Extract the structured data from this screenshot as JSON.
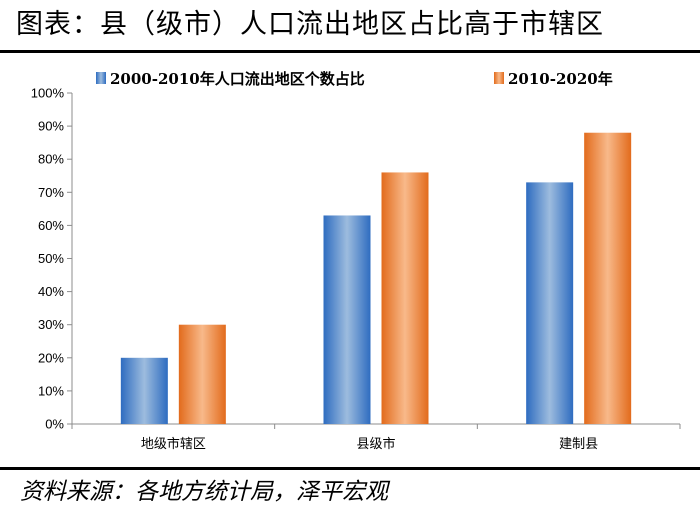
{
  "header": {
    "title": "图表：县（级市）人口流出地区占比高于市辖区"
  },
  "footer": {
    "source": "资料来源：各地方统计局，泽平宏观"
  },
  "colors": {
    "blue": "#3a78c2",
    "orange": "#e8772a"
  },
  "chart_data": {
    "type": "bar",
    "title": "县（级市）人口流出地区占比高于市辖区",
    "categories": [
      "地级市辖区",
      "县级市",
      "建制县"
    ],
    "series": [
      {
        "name": "2000-2010年人口流出地区个数占比",
        "values": [
          20,
          63,
          73
        ]
      },
      {
        "name": "2010-2020年",
        "values": [
          30,
          76,
          88
        ]
      }
    ],
    "yticks": [
      "0%",
      "10%",
      "20%",
      "30%",
      "40%",
      "50%",
      "60%",
      "70%",
      "80%",
      "90%",
      "100%"
    ],
    "ylim": [
      0,
      100
    ],
    "xlabel": "",
    "ylabel": "",
    "legend": "top"
  }
}
